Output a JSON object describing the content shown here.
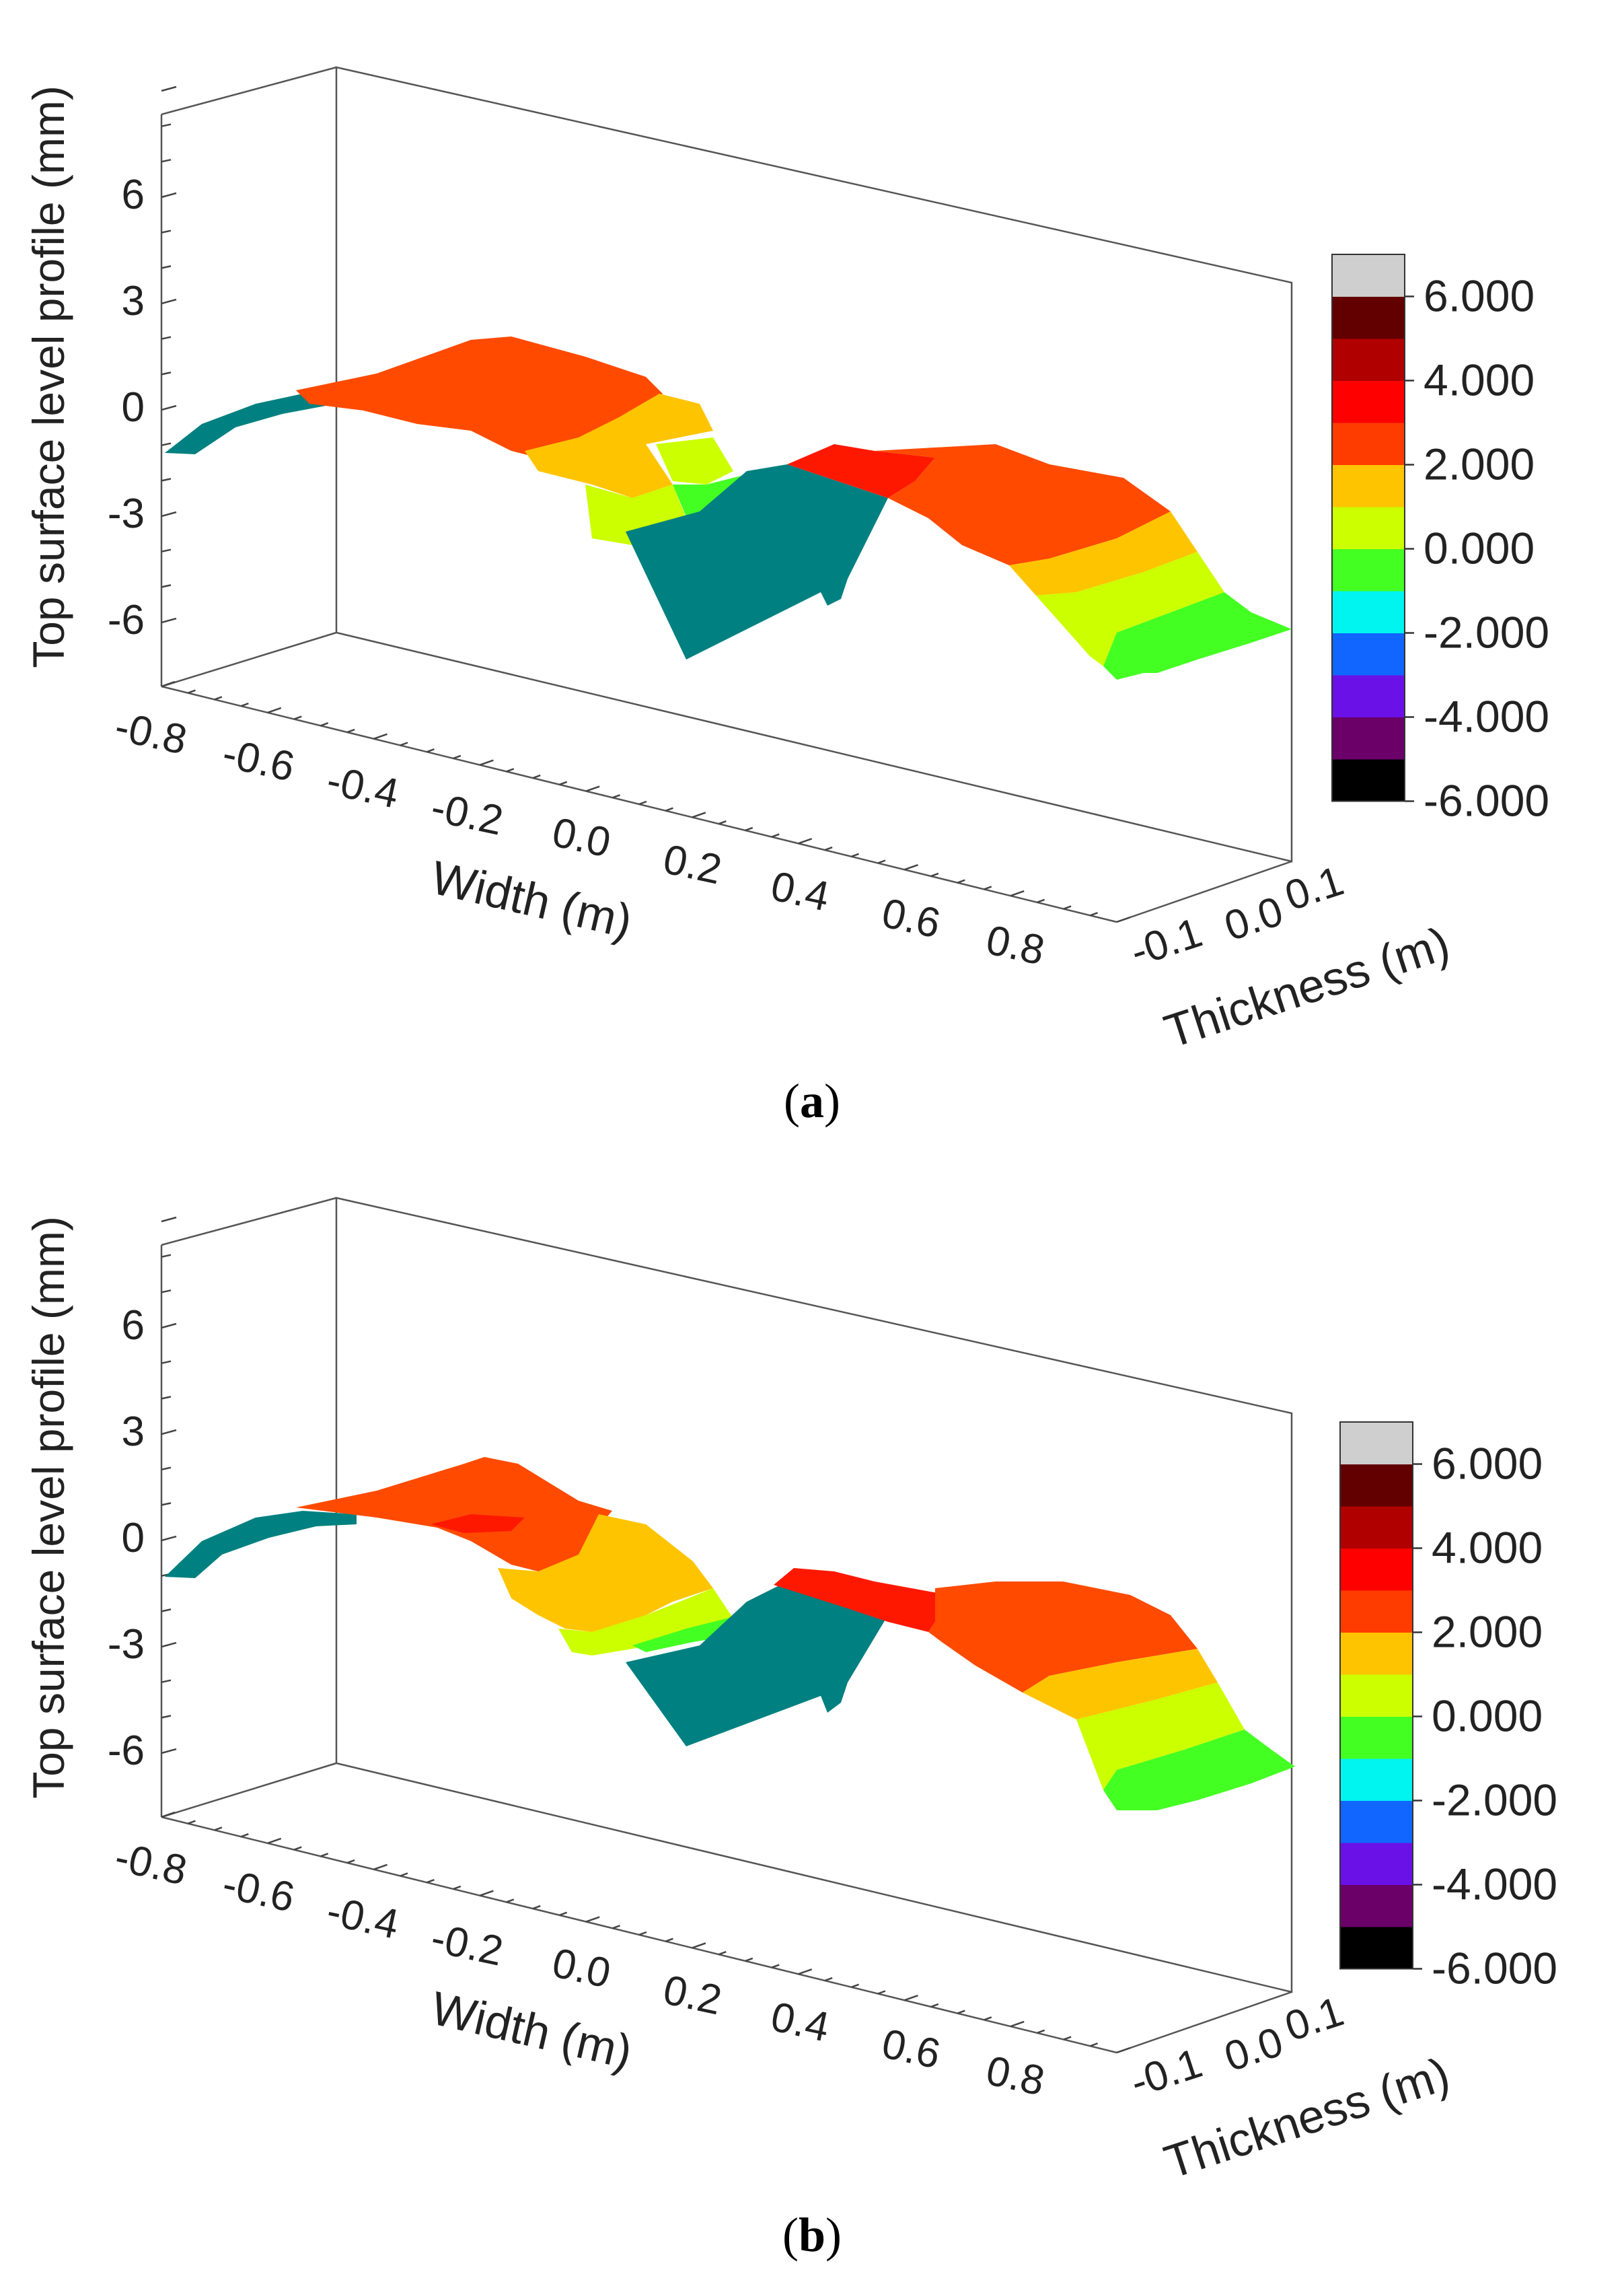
{
  "figure": {
    "colormap": [
      "#000000",
      "#6a0068",
      "#6a11e8",
      "#1166ff",
      "#00f4f0",
      "#44ff22",
      "#ccff00",
      "#ffc400",
      "#ff3c00",
      "#ff0000",
      "#b00000",
      "#620000",
      "#cfcfcf"
    ],
    "surface_color": "#008080",
    "frame_color": "#555555"
  },
  "chart_data": [
    {
      "type": "surface3d",
      "panel_label": "a",
      "ylabel": "Top surface level profile (mm)",
      "xlabel": "Width (m)",
      "zlabel": "Thickness (m)",
      "y_ticks": [
        "6",
        "3",
        "0",
        "-3",
        "-6"
      ],
      "x_ticks": [
        "-0.8",
        "-0.6",
        "-0.4",
        "-0.2",
        "0.0",
        "0.2",
        "0.4",
        "0.6",
        "0.8"
      ],
      "z_ticks": [
        "-0.1",
        "0.0",
        "0.1"
      ],
      "colorbar_labels": [
        "6.000",
        "4.000",
        "2.000",
        "0.000",
        "-2.000",
        "-4.000",
        "-6.000"
      ],
      "ylim": [
        -7.5,
        8
      ],
      "xlim": [
        -0.9,
        0.9
      ],
      "profile": {
        "x": [
          -0.88,
          -0.7,
          -0.5,
          -0.3,
          -0.15,
          -0.05,
          0.08,
          0.15,
          0.2,
          0.35,
          0.5,
          0.65,
          0.75,
          0.88
        ],
        "y": [
          -1.3,
          -0.5,
          0.5,
          1.8,
          1.5,
          0.5,
          -1.5,
          -2.5,
          -5.8,
          -3.5,
          -1.2,
          -2.0,
          -3.5,
          -6.0
        ]
      }
    },
    {
      "type": "surface3d",
      "panel_label": "b",
      "ylabel": "Top surface level profile (mm)",
      "xlabel": "Width (m)",
      "zlabel": "Thickness (m)",
      "y_ticks": [
        "6",
        "3",
        "0",
        "-3",
        "-6"
      ],
      "x_ticks": [
        "-0.8",
        "-0.6",
        "-0.4",
        "-0.2",
        "0.0",
        "0.2",
        "0.4",
        "0.6",
        "0.8"
      ],
      "z_ticks": [
        "-0.1",
        "0.0",
        "0.1"
      ],
      "colorbar_labels": [
        "6.000",
        "4.000",
        "2.000",
        "0.000",
        "-2.000",
        "-4.000",
        "-6.000"
      ],
      "ylim": [
        -7.5,
        8
      ],
      "xlim": [
        -0.9,
        0.9
      ],
      "profile": {
        "x": [
          -0.88,
          -0.7,
          -0.5,
          -0.3,
          -0.15,
          -0.05,
          0.08,
          0.15,
          0.2,
          0.35,
          0.5,
          0.65,
          0.75,
          0.88
        ],
        "y": [
          -1.3,
          -0.4,
          0.6,
          2.2,
          1.2,
          0.3,
          -1.8,
          -3.0,
          -5.0,
          -3.8,
          -1.0,
          -1.8,
          -3.2,
          -5.8
        ]
      }
    }
  ]
}
